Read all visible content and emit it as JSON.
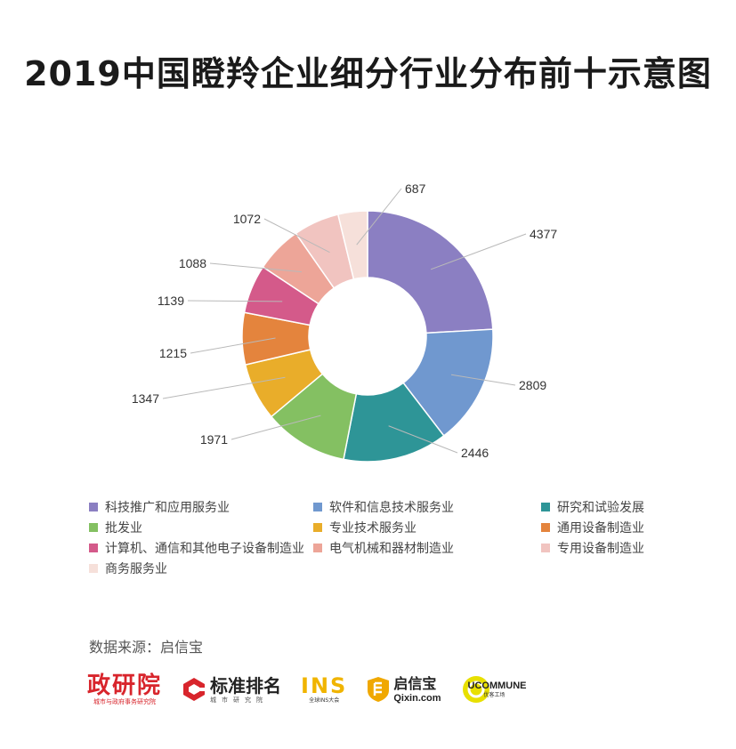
{
  "chart_data": {
    "type": "pie",
    "title": "2019中国瞪羚企业细分行业分布前十示意图",
    "categories": [
      "科技推广和应用服务业",
      "软件和信息技术服务业",
      "研究和试验发展",
      "批发业",
      "专业技术服务业",
      "通用设备制造业",
      "计算机、通信和其他电子设备制造业",
      "电气机械和器材制造业",
      "专用设备制造业",
      "商务服务业"
    ],
    "values": [
      4377,
      2809,
      2446,
      1971,
      1347,
      1215,
      1139,
      1088,
      1072,
      687
    ],
    "labels": [
      "4377",
      "2809",
      "2446",
      "1971",
      "1347",
      "1215",
      "1139",
      "1088",
      "1072",
      "687"
    ],
    "colors": [
      "#8b7fc2",
      "#7098cf",
      "#2e9597",
      "#84c062",
      "#e9ad2a",
      "#e4843d",
      "#d45a8a",
      "#eda598",
      "#f1c4c0",
      "#f6e0da"
    ],
    "donut": true,
    "legend_position": "bottom"
  },
  "source": "数据来源：启信宝",
  "logos": {
    "zyy": {
      "name": "政研院",
      "sub": "城市与政府事务研究院"
    },
    "bzpm": {
      "name": "标准排名",
      "sub": "城市研究院"
    },
    "ins": {
      "name": "INS",
      "sub": "全球INS大会"
    },
    "qxb": {
      "name": "启信宝",
      "sub": "Qixin.com"
    },
    "ucm": {
      "name": "UCOMMUNE",
      "sub": "优客工场"
    }
  }
}
